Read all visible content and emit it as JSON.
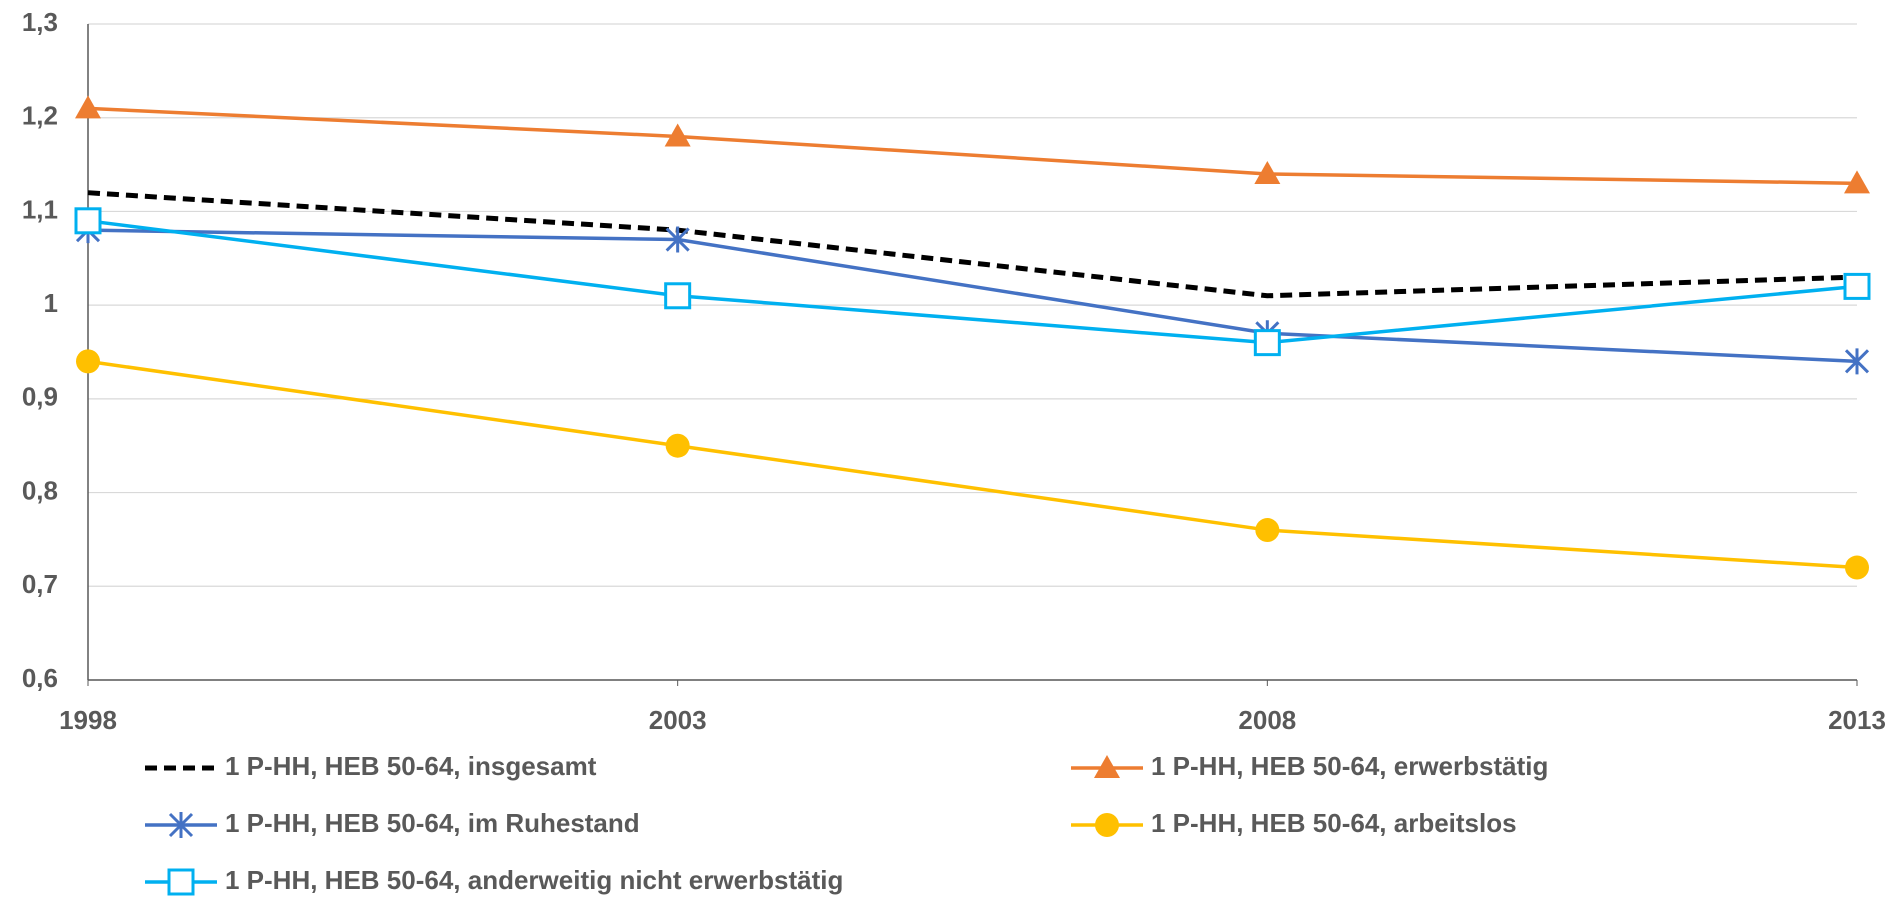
{
  "chart_data": {
    "type": "line",
    "x": [
      1998,
      2003,
      2008,
      2013
    ],
    "xlim": [
      1998,
      2013
    ],
    "xticks": [
      1998,
      2003,
      2008,
      2013
    ],
    "ylim": [
      0.6,
      1.3
    ],
    "yticks": [
      {
        "value": 0.6,
        "label": "0,6"
      },
      {
        "value": 0.7,
        "label": "0,7"
      },
      {
        "value": 0.8,
        "label": "0,8"
      },
      {
        "value": 0.9,
        "label": "0,9"
      },
      1,
      {
        "value": 1.1,
        "label": "1,1"
      },
      {
        "value": 1.2,
        "label": "1,2"
      },
      {
        "value": 1.3,
        "label": "1,3"
      }
    ],
    "grid": true,
    "series": [
      {
        "name": "1 P-HH, HEB 50-64, insgesamt",
        "color": "#000000",
        "marker": "none",
        "dash": true,
        "values": [
          1.12,
          1.08,
          1.01,
          1.03
        ]
      },
      {
        "name": "1 P-HH, HEB 50-64, erwerbstätig",
        "color": "#ed7d31",
        "marker": "triangle",
        "values": [
          1.21,
          1.18,
          1.14,
          1.13
        ]
      },
      {
        "name": "1 P-HH, HEB 50-64, im Ruhestand",
        "color": "#4472c4",
        "marker": "star",
        "values": [
          1.08,
          1.07,
          0.97,
          0.94
        ]
      },
      {
        "name": "1 P-HH, HEB 50-64, arbeitslos",
        "color": "#ffc000",
        "marker": "circle",
        "values": [
          0.94,
          0.85,
          0.76,
          0.72
        ]
      },
      {
        "name": "1 P-HH, HEB 50-64, anderweitig nicht erwerbstätig",
        "color": "#00b0f0",
        "marker": "square",
        "values": [
          1.09,
          1.01,
          0.96,
          1.02
        ]
      }
    ]
  }
}
